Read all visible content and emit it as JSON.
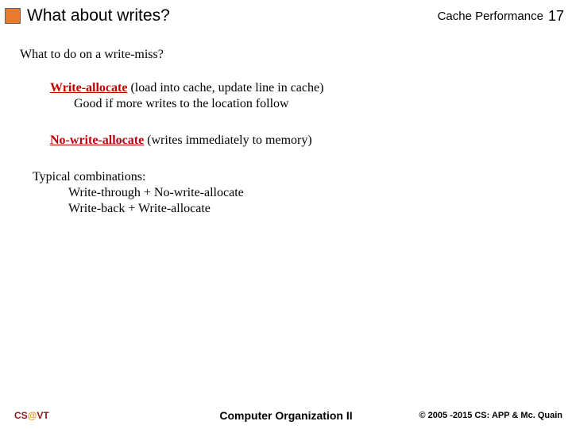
{
  "header": {
    "title": "What about writes?",
    "topic": "Cache Performance",
    "page": "17",
    "accent_color": "#e8792e"
  },
  "content": {
    "heading": "What to do on a write-miss?",
    "bullets": [
      {
        "term": "Write-allocate",
        "desc": " (load into cache, update line in cache)",
        "sub": "Good if more writes to the location follow"
      },
      {
        "term": "No-write-allocate",
        "desc": " (writes immediately to memory)",
        "sub": ""
      }
    ],
    "combo_heading": "Typical combinations:",
    "combos": [
      "Write-through + No-write-allocate",
      "Write-back + Write-allocate"
    ]
  },
  "footer": {
    "cs": "CS",
    "at": "@",
    "vt": "VT",
    "center": "Computer Organization II",
    "right": "© 2005 -2015 CS: APP & Mc. Quain"
  }
}
